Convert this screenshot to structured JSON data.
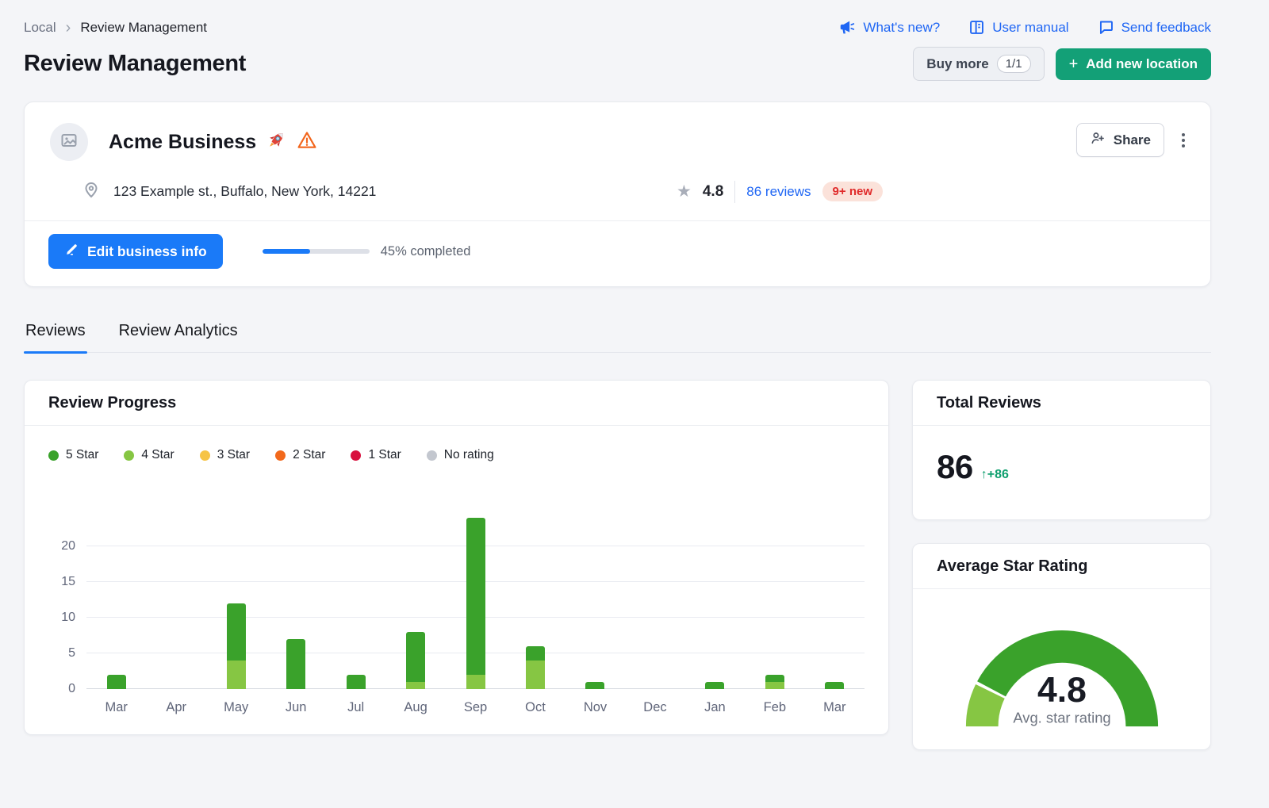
{
  "breadcrumb": {
    "separator": "›",
    "items": [
      {
        "label": "Local"
      },
      {
        "label": "Review Management"
      }
    ]
  },
  "header": {
    "title": "Review Management",
    "links": [
      {
        "label": "What's new?",
        "icon": "megaphone-icon"
      },
      {
        "label": "User manual",
        "icon": "book-icon"
      },
      {
        "label": "Send feedback",
        "icon": "chat-icon"
      }
    ],
    "buy_more": {
      "label": "Buy more",
      "badge": "1/1"
    },
    "add_location": {
      "label": "Add new location",
      "plus": "+"
    },
    "colors": {
      "link_blue": "#1f66f4",
      "button_green": "#13a077",
      "button_blue": "#1a7af8"
    }
  },
  "business": {
    "name": "Acme Business",
    "icons_after_name": [
      "rocket-icon",
      "warning-icon"
    ],
    "address": "123 Example st., Buffalo, New York, 14221",
    "rating_value": "4.8",
    "reviews_link": "86 reviews",
    "new_badge": "9+ new",
    "share_label": "Share",
    "edit_button_label": "Edit business info",
    "progress_percent": 45,
    "progress_label": "45% completed"
  },
  "tabs": [
    {
      "label": "Reviews",
      "active": true
    },
    {
      "label": "Review Analytics",
      "active": false
    }
  ],
  "panels": {
    "review_progress": {
      "title": "Review Progress"
    },
    "total_reviews": {
      "title": "Total Reviews",
      "value": "86",
      "delta": "↑+86",
      "delta_color": "#0e9f6e"
    },
    "average_star_rating": {
      "title": "Average Star Rating"
    }
  },
  "chart_data": [
    {
      "type": "bar",
      "stacked": true,
      "title": "Review Progress",
      "categories": [
        "Mar",
        "Apr",
        "May",
        "Jun",
        "Jul",
        "Aug",
        "Sep",
        "Oct",
        "Nov",
        "Dec",
        "Jan",
        "Feb",
        "Mar"
      ],
      "series": [
        {
          "name": "5 Star",
          "color": "#3aa22b",
          "pattern": false,
          "values": [
            2,
            0,
            8,
            7,
            2,
            7,
            22,
            2,
            1,
            0,
            1,
            1,
            1
          ]
        },
        {
          "name": "4 Star",
          "color": "#86c643",
          "pattern": true,
          "values": [
            0,
            0,
            4,
            0,
            0,
            1,
            2,
            4,
            0,
            0,
            0,
            1,
            0
          ]
        },
        {
          "name": "3 Star",
          "color": "#f6c445",
          "pattern": false,
          "values": [
            0,
            0,
            0,
            0,
            0,
            0,
            0,
            0,
            0,
            0,
            0,
            0,
            0
          ]
        },
        {
          "name": "2 Star",
          "color": "#f2691c",
          "pattern": true,
          "values": [
            0,
            0,
            0,
            0,
            0,
            0,
            0,
            0,
            0,
            0,
            0,
            0,
            0
          ]
        },
        {
          "name": "1 Star",
          "color": "#d8103d",
          "pattern": false,
          "values": [
            0,
            0,
            0,
            0,
            0,
            0,
            0,
            0,
            0,
            0,
            0,
            0,
            0
          ]
        },
        {
          "name": "No rating",
          "color": "#c3c7cf",
          "pattern": false,
          "values": [
            0,
            0,
            0,
            0,
            0,
            0,
            0,
            0,
            0,
            0,
            0,
            0,
            0
          ]
        }
      ],
      "ylim": [
        0,
        26
      ],
      "yticks": [
        0,
        5,
        10,
        15,
        20
      ],
      "legend_position": "top",
      "grid": true
    },
    {
      "type": "gauge",
      "value": "4.8",
      "caption": "Avg. star rating",
      "min": 0,
      "max": 5,
      "segments": [
        {
          "name": "4 Star",
          "color": "#86c643",
          "fraction": 0.15
        },
        {
          "name": "5 Star",
          "color": "#3aa22b",
          "fraction": 0.85
        }
      ]
    }
  ]
}
